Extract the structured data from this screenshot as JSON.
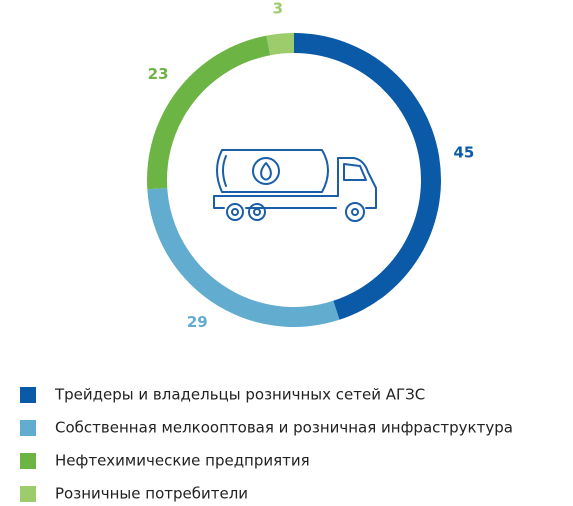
{
  "chart_data": {
    "type": "donut",
    "categories": [
      "Трейдеры и владельцы розничных сетей АГЗС",
      "Собственная мелкооптовая и розничная инфраструктура",
      "Нефтехимические предприятия",
      "Розничные потребители"
    ],
    "values": [
      45,
      29,
      23,
      3
    ],
    "colors": [
      "#0b5aa7",
      "#62acd0",
      "#6cb544",
      "#9dcc6c"
    ]
  }
}
